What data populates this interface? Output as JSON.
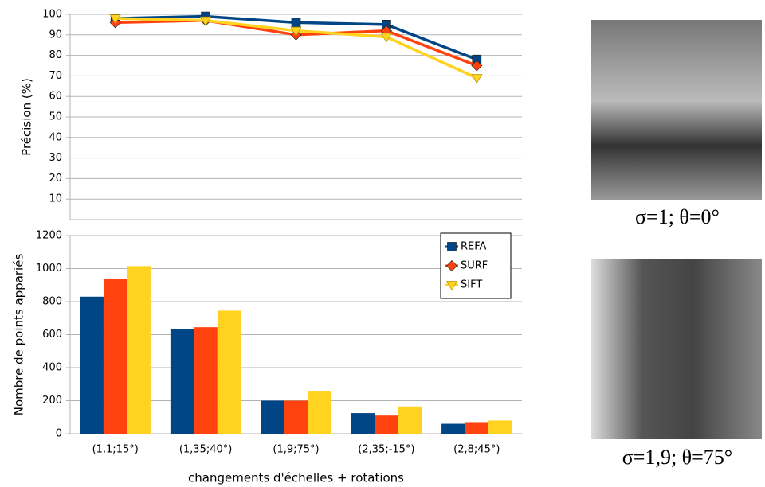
{
  "chart_data": [
    {
      "type": "line",
      "y_label": "Précision (%)",
      "ylim": [
        0,
        100
      ],
      "yticks": [
        10,
        20,
        30,
        40,
        50,
        60,
        70,
        80,
        90,
        100
      ],
      "grid": true,
      "series": [
        {
          "color": "#004586",
          "marker": "square",
          "values": [
            98,
            99,
            96,
            95,
            78
          ]
        },
        {
          "color": "#ff420e",
          "marker": "diamond",
          "values": [
            96,
            97,
            90,
            92,
            75
          ]
        },
        {
          "color": "#ffd320",
          "marker": "triangle-down",
          "values": [
            98,
            97,
            92,
            89,
            69
          ]
        }
      ]
    },
    {
      "type": "bar",
      "y_label": "Nombre de points appariés",
      "x_label": "changements d'échelles + rotations",
      "categories": [
        "(1,1;15°)",
        "(1,35;40°)",
        "(1,9;75°)",
        "(2,35;-15°)",
        "(2,8;45°)"
      ],
      "ylim": [
        0,
        1200
      ],
      "yticks": [
        0,
        200,
        400,
        600,
        800,
        1000,
        1200
      ],
      "grid": true,
      "legend": "top-right",
      "series": [
        {
          "name": "REFA",
          "color": "#004586",
          "values": [
            830,
            635,
            200,
            125,
            60
          ]
        },
        {
          "name": "SURF",
          "color": "#ff420e",
          "values": [
            940,
            645,
            200,
            110,
            70
          ]
        },
        {
          "name": "SIFT",
          "color": "#ffd320",
          "values": [
            1015,
            745,
            260,
            165,
            80
          ]
        }
      ]
    }
  ],
  "images": [
    {
      "caption": "σ=1; θ=0°"
    },
    {
      "caption": "σ=1,9; θ=75°"
    }
  ]
}
